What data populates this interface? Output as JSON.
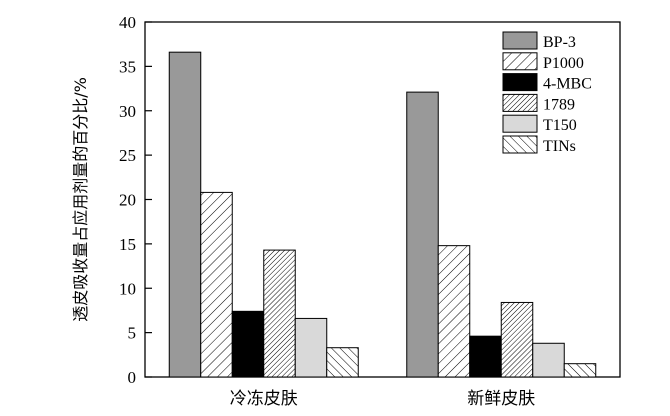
{
  "chart_data": {
    "type": "bar",
    "categories": [
      "冷冻皮肤",
      "新鲜皮肤"
    ],
    "series": [
      {
        "name": "BP-3",
        "values": [
          36.6,
          32.1
        ],
        "fill": "#999999",
        "pattern": "solid"
      },
      {
        "name": "P1000",
        "values": [
          20.8,
          14.8
        ],
        "fill": "#ffffff",
        "pattern": "hatch-forward"
      },
      {
        "name": "4-MBC",
        "values": [
          7.4,
          4.6
        ],
        "fill": "#000000",
        "pattern": "solid"
      },
      {
        "name": "1789",
        "values": [
          14.3,
          8.4
        ],
        "fill": "#ffffff",
        "pattern": "hatch-forward-dense"
      },
      {
        "name": "T150",
        "values": [
          6.6,
          3.8
        ],
        "fill": "#d9d9d9",
        "pattern": "solid"
      },
      {
        "name": "TINs",
        "values": [
          3.3,
          1.5
        ],
        "fill": "#ffffff",
        "pattern": "hatch-backward"
      }
    ],
    "xlabel": "",
    "ylabel": "透皮吸收量占应用剂量的百分比/%",
    "ylim": [
      0,
      40
    ],
    "yticks": [
      0,
      5,
      10,
      15,
      20,
      25,
      30,
      35,
      40
    ],
    "legend_position": "top-right",
    "grid": false
  }
}
